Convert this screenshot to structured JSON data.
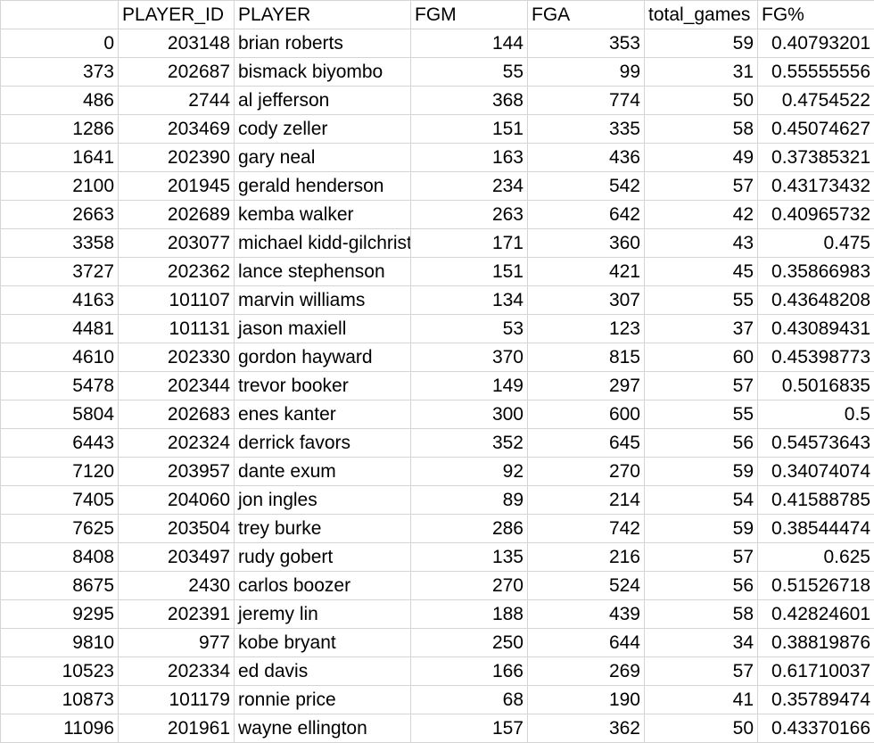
{
  "sheet": {
    "headers": [
      "",
      "PLAYER_ID",
      "PLAYER",
      "FGM",
      "FGA",
      "total_games",
      "FG%"
    ],
    "rows": [
      {
        "idx": "0",
        "player_id": "203148",
        "player": "brian roberts",
        "fgm": "144",
        "fga": "353",
        "total_games": "59",
        "fg_pct": "0.40793201"
      },
      {
        "idx": "373",
        "player_id": "202687",
        "player": "bismack biyombo",
        "fgm": "55",
        "fga": "99",
        "total_games": "31",
        "fg_pct": "0.55555556"
      },
      {
        "idx": "486",
        "player_id": "2744",
        "player": "al jefferson",
        "fgm": "368",
        "fga": "774",
        "total_games": "50",
        "fg_pct": "0.4754522"
      },
      {
        "idx": "1286",
        "player_id": "203469",
        "player": "cody zeller",
        "fgm": "151",
        "fga": "335",
        "total_games": "58",
        "fg_pct": "0.45074627"
      },
      {
        "idx": "1641",
        "player_id": "202390",
        "player": "gary neal",
        "fgm": "163",
        "fga": "436",
        "total_games": "49",
        "fg_pct": "0.37385321"
      },
      {
        "idx": "2100",
        "player_id": "201945",
        "player": "gerald henderson",
        "fgm": "234",
        "fga": "542",
        "total_games": "57",
        "fg_pct": "0.43173432"
      },
      {
        "idx": "2663",
        "player_id": "202689",
        "player": "kemba walker",
        "fgm": "263",
        "fga": "642",
        "total_games": "42",
        "fg_pct": "0.40965732"
      },
      {
        "idx": "3358",
        "player_id": "203077",
        "player": "michael kidd-gilchrist",
        "fgm": "171",
        "fga": "360",
        "total_games": "43",
        "fg_pct": "0.475"
      },
      {
        "idx": "3727",
        "player_id": "202362",
        "player": "lance stephenson",
        "fgm": "151",
        "fga": "421",
        "total_games": "45",
        "fg_pct": "0.35866983"
      },
      {
        "idx": "4163",
        "player_id": "101107",
        "player": "marvin williams",
        "fgm": "134",
        "fga": "307",
        "total_games": "55",
        "fg_pct": "0.43648208"
      },
      {
        "idx": "4481",
        "player_id": "101131",
        "player": "jason maxiell",
        "fgm": "53",
        "fga": "123",
        "total_games": "37",
        "fg_pct": "0.43089431"
      },
      {
        "idx": "4610",
        "player_id": "202330",
        "player": "gordon hayward",
        "fgm": "370",
        "fga": "815",
        "total_games": "60",
        "fg_pct": "0.45398773"
      },
      {
        "idx": "5478",
        "player_id": "202344",
        "player": "trevor booker",
        "fgm": "149",
        "fga": "297",
        "total_games": "57",
        "fg_pct": "0.5016835"
      },
      {
        "idx": "5804",
        "player_id": "202683",
        "player": "enes kanter",
        "fgm": "300",
        "fga": "600",
        "total_games": "55",
        "fg_pct": "0.5"
      },
      {
        "idx": "6443",
        "player_id": "202324",
        "player": "derrick favors",
        "fgm": "352",
        "fga": "645",
        "total_games": "56",
        "fg_pct": "0.54573643"
      },
      {
        "idx": "7120",
        "player_id": "203957",
        "player": "dante exum",
        "fgm": "92",
        "fga": "270",
        "total_games": "59",
        "fg_pct": "0.34074074"
      },
      {
        "idx": "7405",
        "player_id": "204060",
        "player": "jon ingles",
        "fgm": "89",
        "fga": "214",
        "total_games": "54",
        "fg_pct": "0.41588785"
      },
      {
        "idx": "7625",
        "player_id": "203504",
        "player": "trey burke",
        "fgm": "286",
        "fga": "742",
        "total_games": "59",
        "fg_pct": "0.38544474"
      },
      {
        "idx": "8408",
        "player_id": "203497",
        "player": "rudy gobert",
        "fgm": "135",
        "fga": "216",
        "total_games": "57",
        "fg_pct": "0.625"
      },
      {
        "idx": "8675",
        "player_id": "2430",
        "player": "carlos boozer",
        "fgm": "270",
        "fga": "524",
        "total_games": "56",
        "fg_pct": "0.51526718"
      },
      {
        "idx": "9295",
        "player_id": "202391",
        "player": "jeremy lin",
        "fgm": "188",
        "fga": "439",
        "total_games": "58",
        "fg_pct": "0.42824601"
      },
      {
        "idx": "9810",
        "player_id": "977",
        "player": "kobe bryant",
        "fgm": "250",
        "fga": "644",
        "total_games": "34",
        "fg_pct": "0.38819876"
      },
      {
        "idx": "10523",
        "player_id": "202334",
        "player": "ed davis",
        "fgm": "166",
        "fga": "269",
        "total_games": "57",
        "fg_pct": "0.61710037"
      },
      {
        "idx": "10873",
        "player_id": "101179",
        "player": "ronnie price",
        "fgm": "68",
        "fga": "190",
        "total_games": "41",
        "fg_pct": "0.35789474"
      },
      {
        "idx": "11096",
        "player_id": "201961",
        "player": "wayne ellington",
        "fgm": "157",
        "fga": "362",
        "total_games": "50",
        "fg_pct": "0.43370166"
      }
    ]
  }
}
